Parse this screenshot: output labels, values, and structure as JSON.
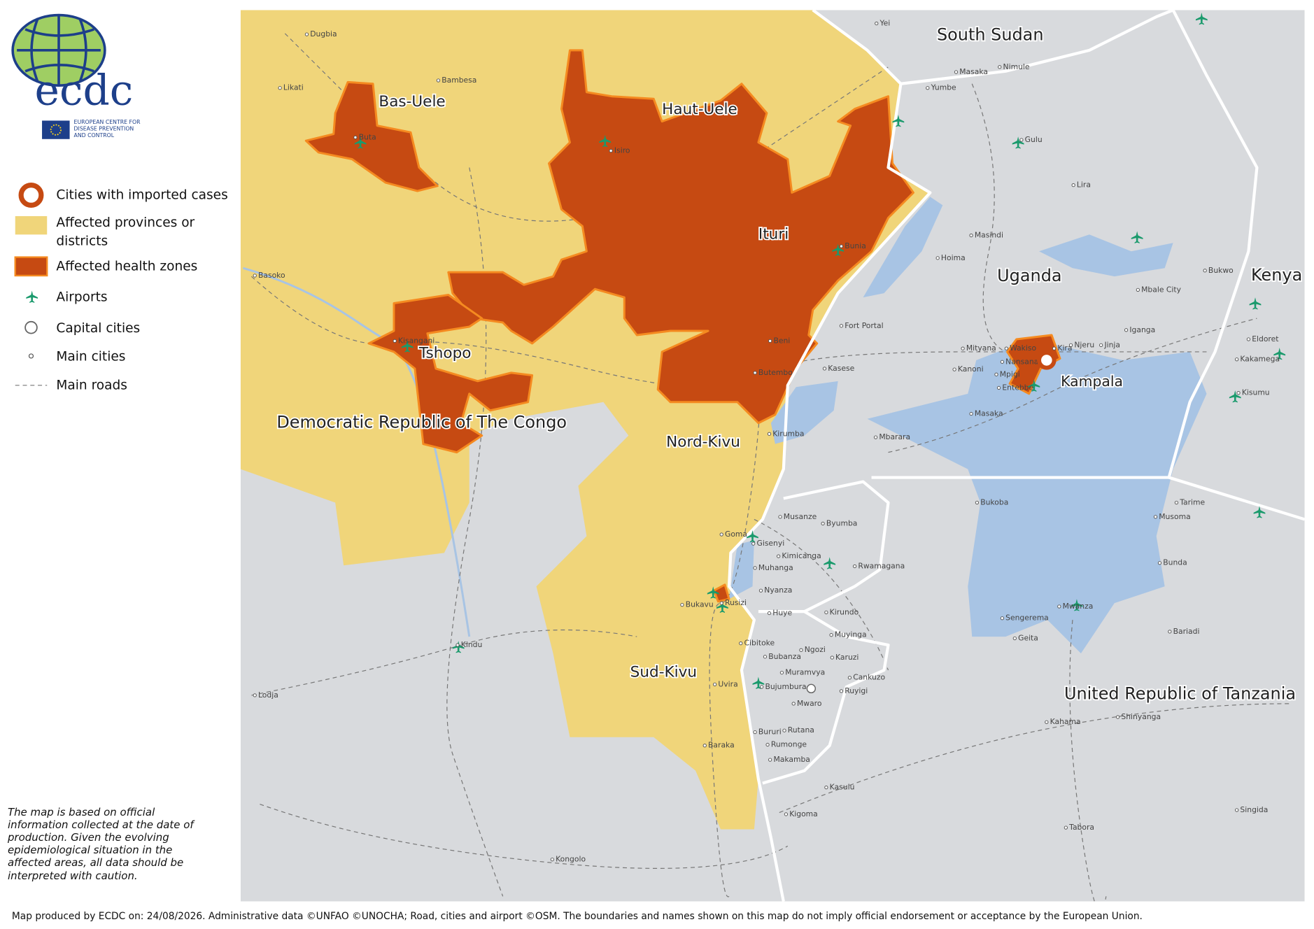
{
  "logo": {
    "name": "ecdc",
    "org": [
      "EUROPEAN CENTRE FOR",
      "DISEASE PREVENTION",
      "AND CONTROL"
    ]
  },
  "legend": [
    "Cities with imported cases",
    "Affected provinces or",
    "districts",
    "Affected health zones",
    "Airports",
    "Capital cities",
    "Main cities",
    "Main roads"
  ],
  "disclaimer": [
    "The map is based on official",
    "information collected at the date of",
    "production. Given the evolving",
    "epidemiological situation in the",
    "affected areas, all data should be",
    "interpreted with caution."
  ],
  "footer": "Map produced by ECDC on: 24/08/2026. Administrative data ©UNFAO  ©UNOCHA;  Road, cities and airport ©OSM. The boundaries and names shown on this map do not imply official endorsement or acceptance by the European Union.",
  "countries": [
    "South Sudan",
    "Uganda",
    "Kenya",
    "Democratic Republic of The Congo",
    "United Republic of Tanzania"
  ],
  "provinces": [
    "Bas-Uele",
    "Haut-Uele",
    "Ituri",
    "Tshopo",
    "Nord-Kivu",
    "Sud-Kivu"
  ],
  "imported_cities": [
    "Kampala"
  ],
  "cities": [
    "Dugbia",
    "Bambesa",
    "Likati",
    "Buta",
    "Isiro",
    "Yei",
    "Masaka",
    "Nimule",
    "Yumbe",
    "Gulu",
    "Lira",
    "Masindi",
    "Hoima",
    "Bunia",
    "Basoko",
    "Kisangani",
    "Beni",
    "Butembo",
    "Fort Portal",
    "Kasese",
    "Mityana",
    "Wakiso",
    "Kanoni",
    "Mpigi",
    "Nansana",
    "Entebbe",
    "Kira",
    "Njeru",
    "Jinja",
    "Iganga",
    "Mbale City",
    "Bukwo",
    "Eldoret",
    "Kakamega",
    "Kisumu",
    "Masaka",
    "Mbarara",
    "Kirumba",
    "Goma",
    "Gisenyi",
    "Musanze",
    "Byumba",
    "Kimicanga",
    "Rwamagana",
    "Muhanga",
    "Nyanza",
    "Huye",
    "Kirundo",
    "Bukavu",
    "Rusizi",
    "Cibitoke",
    "Muyinga",
    "Bubanza",
    "Ngozi",
    "Karuzi",
    "Muramvya",
    "Cankuzo",
    "Bujumbura",
    "Ruyigi",
    "Mwaro",
    "Uvira",
    "Bururi",
    "Rutana",
    "Rumonge",
    "Makamba",
    "Baraka",
    "Kindu",
    "Lodja",
    "Kasulu",
    "Kigoma",
    "Kongolo",
    "Bukoba",
    "Tarime",
    "Musoma",
    "Bunda",
    "Mwanza",
    "Sengerema",
    "Geita",
    "Bariadi",
    "Kahama",
    "Shinyanga",
    "Singida",
    "Tabora"
  ]
}
